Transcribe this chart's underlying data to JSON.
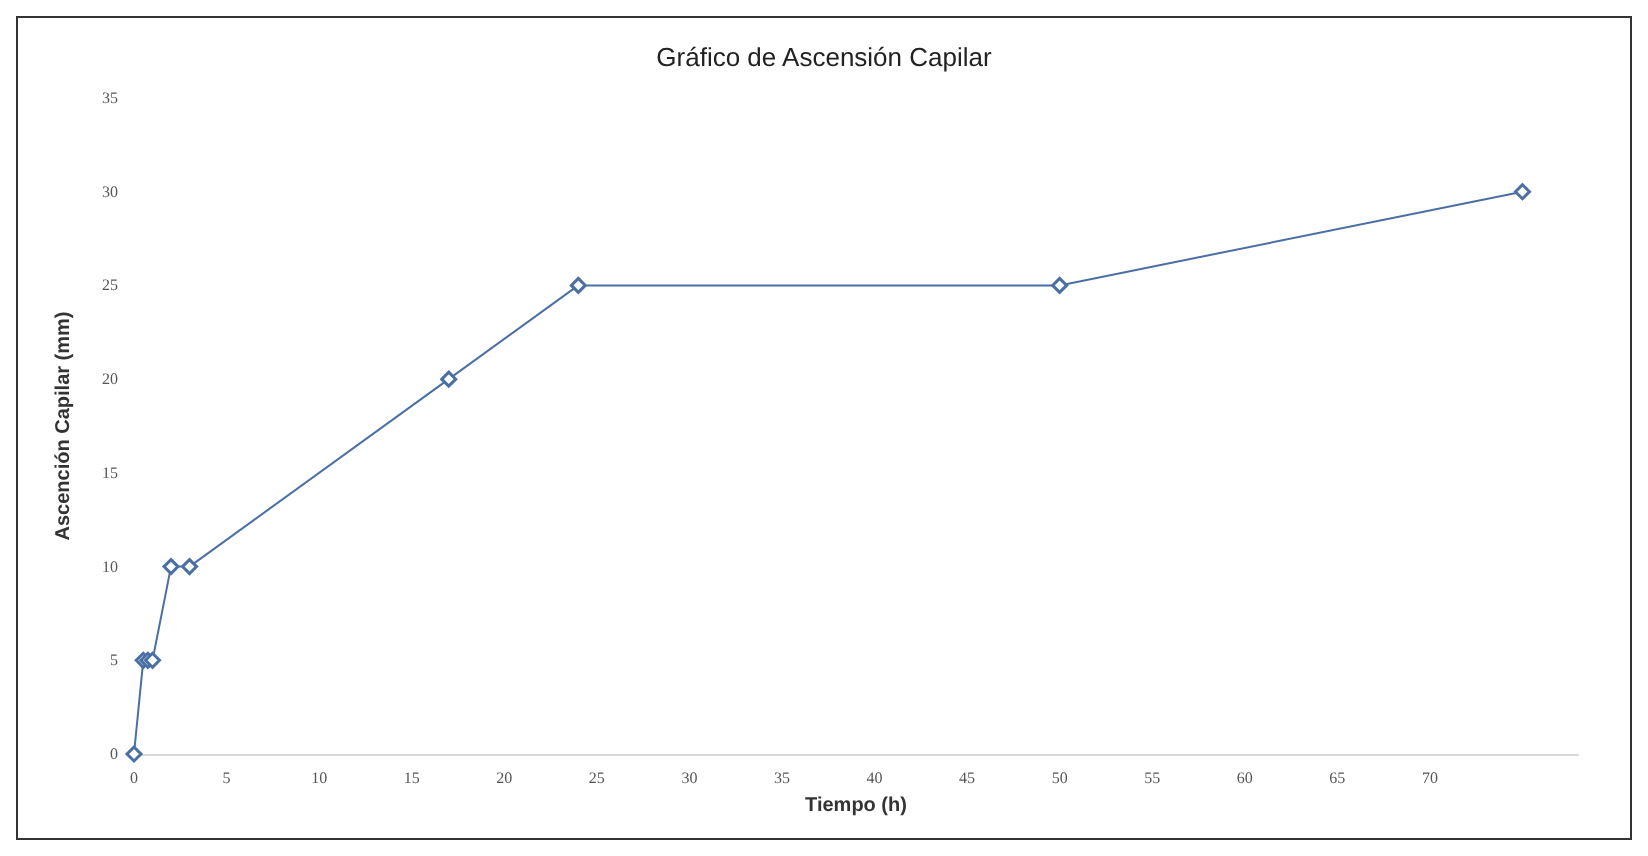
{
  "chart_data": {
    "type": "line",
    "title": "Gráfico de Ascensión Capilar",
    "xlabel": "Tiempo (h)",
    "ylabel": "Ascención Capilar (mm)",
    "x": [
      0,
      0.5,
      0.75,
      1,
      2,
      3,
      17,
      24,
      50,
      75
    ],
    "series": [
      {
        "color": "#4a6fa5",
        "values": [
          0,
          5,
          5,
          5,
          10,
          10,
          20,
          25,
          25,
          30
        ]
      }
    ],
    "xlim": [
      0,
      78
    ],
    "xticks": [
      0,
      5,
      10,
      15,
      20,
      25,
      30,
      35,
      40,
      45,
      50,
      55,
      60,
      65,
      70
    ],
    "ylim": [
      0,
      35
    ],
    "yticks": [
      0,
      5,
      10,
      15,
      20,
      25,
      30,
      35
    ],
    "marker": "diamond",
    "line_style": "solid",
    "grid": false
  }
}
